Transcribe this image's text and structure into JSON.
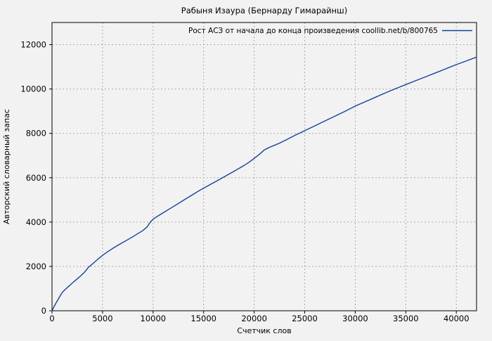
{
  "window": {
    "background": "#f2f2f2"
  },
  "chart_data": {
    "type": "line",
    "title": "Рабыня Изаура (Бернарду Гимарайнш)",
    "xlabel": "Счетчик слов",
    "ylabel": "Авторский словарный запас",
    "xlim": [
      0,
      42000
    ],
    "ylim": [
      0,
      13000
    ],
    "x_ticks": [
      0,
      5000,
      10000,
      15000,
      20000,
      25000,
      30000,
      35000,
      40000
    ],
    "y_ticks": [
      0,
      2000,
      4000,
      6000,
      8000,
      10000,
      12000
    ],
    "grid": true,
    "legend": {
      "position": "top-right-inside",
      "sample_side": "right"
    },
    "colors": {
      "background": "#f2f2f2",
      "grid": "#ababab",
      "axis": "#000000",
      "text": "#000000",
      "series": "#16439c"
    },
    "series": [
      {
        "name": "Рост АСЗ от начала до конца произведения coollib.net/b/800765",
        "color": "#16439c",
        "points": [
          [
            0,
            0
          ],
          [
            150,
            140
          ],
          [
            300,
            270
          ],
          [
            500,
            430
          ],
          [
            700,
            590
          ],
          [
            900,
            745
          ],
          [
            1100,
            870
          ],
          [
            1400,
            1000
          ],
          [
            1700,
            1120
          ],
          [
            2000,
            1250
          ],
          [
            2400,
            1400
          ],
          [
            2800,
            1560
          ],
          [
            3200,
            1730
          ],
          [
            3600,
            1960
          ],
          [
            4000,
            2110
          ],
          [
            4500,
            2310
          ],
          [
            5000,
            2500
          ],
          [
            5500,
            2660
          ],
          [
            6000,
            2810
          ],
          [
            6500,
            2950
          ],
          [
            7000,
            3080
          ],
          [
            7500,
            3210
          ],
          [
            8000,
            3340
          ],
          [
            8500,
            3480
          ],
          [
            9000,
            3620
          ],
          [
            9400,
            3780
          ],
          [
            9700,
            3980
          ],
          [
            10000,
            4130
          ],
          [
            10500,
            4280
          ],
          [
            11000,
            4420
          ],
          [
            11500,
            4560
          ],
          [
            12000,
            4700
          ],
          [
            12500,
            4840
          ],
          [
            13000,
            4980
          ],
          [
            13500,
            5120
          ],
          [
            14000,
            5260
          ],
          [
            14500,
            5400
          ],
          [
            15000,
            5530
          ],
          [
            16000,
            5780
          ],
          [
            17000,
            6030
          ],
          [
            18000,
            6290
          ],
          [
            19000,
            6550
          ],
          [
            19500,
            6700
          ],
          [
            20000,
            6870
          ],
          [
            20500,
            7050
          ],
          [
            21000,
            7250
          ],
          [
            21500,
            7370
          ],
          [
            22000,
            7460
          ],
          [
            22500,
            7560
          ],
          [
            23000,
            7670
          ],
          [
            24000,
            7900
          ],
          [
            25000,
            8120
          ],
          [
            26000,
            8340
          ],
          [
            27000,
            8560
          ],
          [
            28000,
            8780
          ],
          [
            29000,
            9000
          ],
          [
            30000,
            9230
          ],
          [
            31000,
            9430
          ],
          [
            32000,
            9630
          ],
          [
            33000,
            9830
          ],
          [
            34000,
            10020
          ],
          [
            35000,
            10200
          ],
          [
            36000,
            10380
          ],
          [
            37000,
            10560
          ],
          [
            38000,
            10740
          ],
          [
            39000,
            10920
          ],
          [
            40000,
            11100
          ],
          [
            41000,
            11270
          ],
          [
            42000,
            11440
          ]
        ]
      }
    ]
  }
}
